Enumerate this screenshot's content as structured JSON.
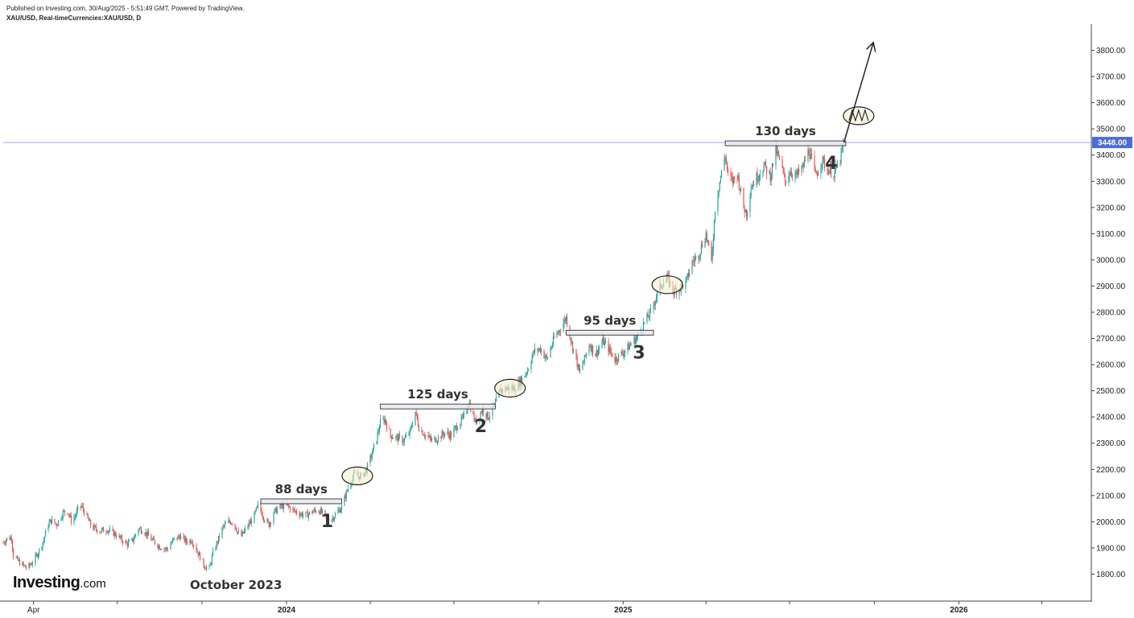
{
  "header": {
    "line1": "Published on Investing.com, 30/Aug/2025 - 5:51:49 GMT, Powered by TradingView.",
    "line2": "XAU/USD, Real-timeCurrencies:XAU/USD, D"
  },
  "logo": {
    "brand": "Investing",
    "tld": ".com"
  },
  "colors": {
    "up": "#26a69a",
    "down": "#ef5350",
    "axis": "#444444",
    "price_line": "#8a8df0",
    "price_tag": "#4a6bdc"
  },
  "chart_data": {
    "type": "line",
    "title": "",
    "instrument": "XAU/USD",
    "timeframe": "D",
    "xlabel": "",
    "ylabel": "",
    "ylim": [
      1700,
      3900
    ],
    "y_ticks": [
      "3800.00",
      "3700.00",
      "3600.00",
      "3500.00",
      "3400.00",
      "3300.00",
      "3200.00",
      "3100.00",
      "3000.00",
      "2900.00",
      "2800.00",
      "2700.00",
      "2600.00",
      "2500.00",
      "2400.00",
      "2300.00",
      "2200.00",
      "2100.00",
      "2000.00",
      "1900.00",
      "1800.00"
    ],
    "x_ticks": [
      {
        "label": "Apr",
        "date": "2023-04-01",
        "bold": false
      },
      {
        "label": "2024",
        "date": "2024-01-01",
        "bold": true
      },
      {
        "label": "2025",
        "date": "2025-01-01",
        "bold": true
      },
      {
        "label": "2026",
        "date": "2026-01-01",
        "bold": true
      }
    ],
    "xlim": [
      "2023-02-27",
      "2026-05-25"
    ],
    "current_price": {
      "label": "3448.00",
      "value": 3448
    },
    "price_path": [
      [
        "2023-02-27",
        1920
      ],
      [
        "2023-03-03",
        1935
      ],
      [
        "2023-03-08",
        1940
      ],
      [
        "2023-03-10",
        1870
      ],
      [
        "2023-03-18",
        1840
      ],
      [
        "2023-03-25",
        1822
      ],
      [
        "2023-04-01",
        1850
      ],
      [
        "2023-04-07",
        1890
      ],
      [
        "2023-04-12",
        1930
      ],
      [
        "2023-04-16",
        1985
      ],
      [
        "2023-04-20",
        2005
      ],
      [
        "2023-04-26",
        1990
      ],
      [
        "2023-05-03",
        2035
      ],
      [
        "2023-05-08",
        2040
      ],
      [
        "2023-05-12",
        2005
      ],
      [
        "2023-05-16",
        2020
      ],
      [
        "2023-05-19",
        2045
      ],
      [
        "2023-05-23",
        2060
      ],
      [
        "2023-05-28",
        2025
      ],
      [
        "2023-06-03",
        1980
      ],
      [
        "2023-06-12",
        1965
      ],
      [
        "2023-06-20",
        1970
      ],
      [
        "2023-06-30",
        1950
      ],
      [
        "2023-07-06",
        1930
      ],
      [
        "2023-07-12",
        1915
      ],
      [
        "2023-07-18",
        1930
      ],
      [
        "2023-07-24",
        1975
      ],
      [
        "2023-07-30",
        1965
      ],
      [
        "2023-08-08",
        1930
      ],
      [
        "2023-08-16",
        1905
      ],
      [
        "2023-08-24",
        1895
      ],
      [
        "2023-08-31",
        1930
      ],
      [
        "2023-09-07",
        1945
      ],
      [
        "2023-09-14",
        1925
      ],
      [
        "2023-09-20",
        1930
      ],
      [
        "2023-09-27",
        1880
      ],
      [
        "2023-10-04",
        1830
      ],
      [
        "2023-10-09",
        1820
      ],
      [
        "2023-10-13",
        1880
      ],
      [
        "2023-10-18",
        1925
      ],
      [
        "2023-10-24",
        1980
      ],
      [
        "2023-10-30",
        2000
      ],
      [
        "2023-11-04",
        2000
      ],
      [
        "2023-11-09",
        1960
      ],
      [
        "2023-11-13",
        1945
      ],
      [
        "2023-11-20",
        1985
      ],
      [
        "2023-11-26",
        2015
      ],
      [
        "2023-12-01",
        2060
      ],
      [
        "2023-12-04",
        2045
      ],
      [
        "2023-12-08",
        2010
      ],
      [
        "2023-12-13",
        1990
      ],
      [
        "2023-12-18",
        2035
      ],
      [
        "2023-12-26",
        2060
      ],
      [
        "2024-01-02",
        2060
      ],
      [
        "2024-01-10",
        2040
      ],
      [
        "2024-01-16",
        2030
      ],
      [
        "2024-01-22",
        2025
      ],
      [
        "2024-01-30",
        2040
      ],
      [
        "2024-02-05",
        2045
      ],
      [
        "2024-02-12",
        2020
      ],
      [
        "2024-02-19",
        2010
      ],
      [
        "2024-02-26",
        2040
      ],
      [
        "2024-03-01",
        2055
      ],
      [
        "2024-03-05",
        2100
      ],
      [
        "2024-03-10",
        2150
      ],
      [
        "2024-03-15",
        2180
      ],
      [
        "2024-03-22",
        2170
      ],
      [
        "2024-03-28",
        2200
      ],
      [
        "2024-04-03",
        2260
      ],
      [
        "2024-04-08",
        2320
      ],
      [
        "2024-04-12",
        2380
      ],
      [
        "2024-04-17",
        2390
      ],
      [
        "2024-04-23",
        2330
      ],
      [
        "2024-04-30",
        2320
      ],
      [
        "2024-05-07",
        2310
      ],
      [
        "2024-05-14",
        2340
      ],
      [
        "2024-05-20",
        2420
      ],
      [
        "2024-05-24",
        2360
      ],
      [
        "2024-05-31",
        2330
      ],
      [
        "2024-06-07",
        2310
      ],
      [
        "2024-06-14",
        2320
      ],
      [
        "2024-06-21",
        2340
      ],
      [
        "2024-06-28",
        2330
      ],
      [
        "2024-07-05",
        2370
      ],
      [
        "2024-07-12",
        2400
      ],
      [
        "2024-07-17",
        2460
      ],
      [
        "2024-07-24",
        2380
      ],
      [
        "2024-08-01",
        2430
      ],
      [
        "2024-08-07",
        2400
      ],
      [
        "2024-08-14",
        2440
      ],
      [
        "2024-08-20",
        2500
      ],
      [
        "2024-08-28",
        2510
      ],
      [
        "2024-09-05",
        2510
      ],
      [
        "2024-09-12",
        2540
      ],
      [
        "2024-09-19",
        2580
      ],
      [
        "2024-09-26",
        2650
      ],
      [
        "2024-10-03",
        2660
      ],
      [
        "2024-10-10",
        2620
      ],
      [
        "2024-10-18",
        2700
      ],
      [
        "2024-10-25",
        2740
      ],
      [
        "2024-10-31",
        2780
      ],
      [
        "2024-11-06",
        2680
      ],
      [
        "2024-11-11",
        2620
      ],
      [
        "2024-11-14",
        2570
      ],
      [
        "2024-11-20",
        2620
      ],
      [
        "2024-11-25",
        2680
      ],
      [
        "2024-12-02",
        2640
      ],
      [
        "2024-12-10",
        2690
      ],
      [
        "2024-12-16",
        2660
      ],
      [
        "2024-12-23",
        2620
      ],
      [
        "2025-01-02",
        2650
      ],
      [
        "2025-01-10",
        2680
      ],
      [
        "2025-01-17",
        2710
      ],
      [
        "2025-01-24",
        2760
      ],
      [
        "2025-01-31",
        2800
      ],
      [
        "2025-02-06",
        2860
      ],
      [
        "2025-02-12",
        2910
      ],
      [
        "2025-02-18",
        2930
      ],
      [
        "2025-02-25",
        2880
      ],
      [
        "2025-03-03",
        2890
      ],
      [
        "2025-03-10",
        2910
      ],
      [
        "2025-03-17",
        2990
      ],
      [
        "2025-03-24",
        3020
      ],
      [
        "2025-04-01",
        3100
      ],
      [
        "2025-04-07",
        2990
      ],
      [
        "2025-04-11",
        3200
      ],
      [
        "2025-04-16",
        3300
      ],
      [
        "2025-04-22",
        3400
      ],
      [
        "2025-04-25",
        3320
      ],
      [
        "2025-04-30",
        3300
      ],
      [
        "2025-05-05",
        3330
      ],
      [
        "2025-05-12",
        3200
      ],
      [
        "2025-05-15",
        3180
      ],
      [
        "2025-05-20",
        3280
      ],
      [
        "2025-05-27",
        3320
      ],
      [
        "2025-06-03",
        3360
      ],
      [
        "2025-06-10",
        3320
      ],
      [
        "2025-06-16",
        3420
      ],
      [
        "2025-06-20",
        3380
      ],
      [
        "2025-06-26",
        3300
      ],
      [
        "2025-07-02",
        3340
      ],
      [
        "2025-07-08",
        3320
      ],
      [
        "2025-07-15",
        3350
      ],
      [
        "2025-07-22",
        3420
      ],
      [
        "2025-07-29",
        3320
      ],
      [
        "2025-08-05",
        3380
      ],
      [
        "2025-08-11",
        3350
      ],
      [
        "2025-08-18",
        3330
      ],
      [
        "2025-08-24",
        3370
      ],
      [
        "2025-08-29",
        3448
      ]
    ],
    "consolidations": [
      {
        "label": "88 days",
        "number": "1",
        "start": "2023-12-04",
        "end": "2024-03-01",
        "level": 2078
      },
      {
        "label": "125 days",
        "number": "2",
        "start": "2024-04-12",
        "end": "2024-08-15",
        "level": 2440
      },
      {
        "label": "95 days",
        "number": "3",
        "start": "2024-10-31",
        "end": "2025-02-03",
        "level": 2722
      },
      {
        "label": "130 days",
        "number": "4",
        "start": "2025-04-22",
        "end": "2025-08-31",
        "level": 3445
      }
    ],
    "highlight_circles": [
      {
        "date": "2024-03-18",
        "value": 2175
      },
      {
        "date": "2024-08-31",
        "value": 2510
      },
      {
        "date": "2025-02-18",
        "value": 2905
      },
      {
        "date": "2025-09-14",
        "value": 3550
      }
    ],
    "projection": {
      "from": [
        "2025-08-29",
        3448
      ],
      "to": [
        "2025-09-30",
        3830
      ]
    },
    "annotation_text": "October 2023"
  }
}
